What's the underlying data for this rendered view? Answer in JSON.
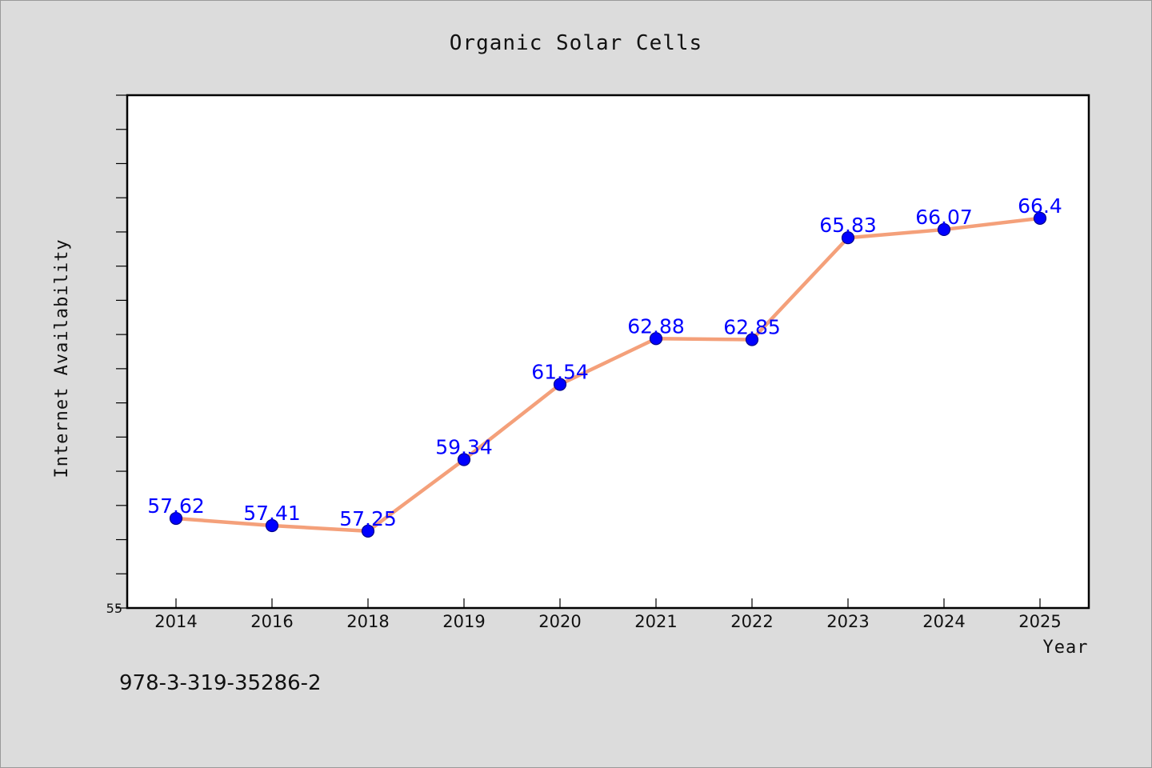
{
  "chart_data": {
    "type": "line",
    "title": "Organic Solar Cells",
    "xlabel": "Year",
    "ylabel": "Internet Availability",
    "categories": [
      "2014",
      "2016",
      "2018",
      "2019",
      "2020",
      "2021",
      "2022",
      "2023",
      "2024",
      "2025"
    ],
    "series": [
      {
        "values": [
          57.62,
          57.41,
          57.25,
          59.34,
          61.54,
          62.88,
          62.85,
          65.83,
          66.07,
          66.4
        ],
        "labels": [
          "57.62",
          "57.41",
          "57.25",
          "59.34",
          "61.54",
          "62.88",
          "62.85",
          "65.83",
          "66.07",
          "66.4"
        ]
      }
    ],
    "ylim": [
      55,
      70
    ],
    "yticks_labeled": [
      "55"
    ],
    "ytick_step": 1,
    "grid": false,
    "legend": "none",
    "colors": {
      "line": "#f4a07a",
      "marker": "#0000ff",
      "marker_edge": "#00008b",
      "data_label": "#0000ff",
      "plot_background": "#ffffff",
      "page_background": "#dcdcdc"
    }
  },
  "footer": {
    "id_text": "978-3-319-35286-2"
  }
}
